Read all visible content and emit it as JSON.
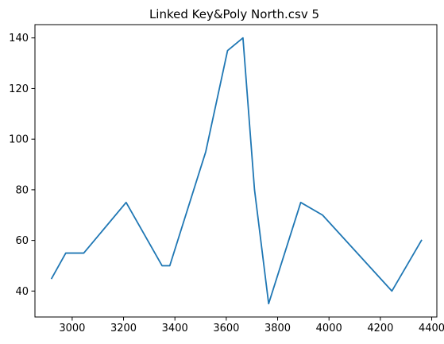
{
  "chart_data": {
    "type": "line",
    "title": "Linked Key&Poly North.csv 5",
    "xlabel": "",
    "ylabel": "",
    "xlim": [
      2855,
      4420
    ],
    "ylim": [
      29.75,
      145.25
    ],
    "x_ticks": [
      3000,
      3200,
      3400,
      3600,
      3800,
      4000,
      4200,
      4400
    ],
    "y_ticks": [
      40,
      60,
      80,
      100,
      120,
      140
    ],
    "grid": false,
    "series": [
      {
        "color": "#1f77b4",
        "x": [
          2920,
          2975,
          3045,
          3210,
          3350,
          3380,
          3520,
          3605,
          3665,
          3710,
          3765,
          3890,
          3975,
          4245,
          4360
        ],
        "y": [
          45,
          55,
          55,
          75,
          50,
          50,
          95,
          135,
          140,
          80,
          35,
          75,
          70,
          40,
          60
        ]
      }
    ]
  }
}
